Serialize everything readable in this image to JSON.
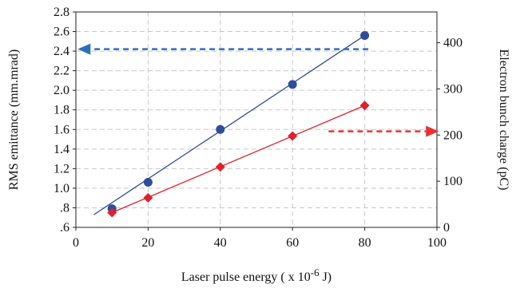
{
  "chart_data": {
    "type": "scatter",
    "xlabel": "Laser pulse energy ( x 10",
    "xlabel_exp": "-6",
    "xlabel_unit": " J)",
    "ylabel_left": "RMS emittance (mm.mrad)",
    "ylabel_right": "Electron bunch charge (pC)",
    "xlim": [
      0,
      100
    ],
    "ylim_left": [
      0.6,
      2.8
    ],
    "ylim_right": [
      0,
      466.67
    ],
    "x_ticks": [
      {
        "v": 0,
        "t": "0"
      },
      {
        "v": 20,
        "t": "20"
      },
      {
        "v": 40,
        "t": "40"
      },
      {
        "v": 60,
        "t": "60"
      },
      {
        "v": 80,
        "t": "80"
      },
      {
        "v": 100,
        "t": "100"
      }
    ],
    "y_left_ticks": [
      {
        "v": 0.6,
        "t": ".6"
      },
      {
        "v": 0.8,
        "t": ".8"
      },
      {
        "v": 1.0,
        "t": "1.0"
      },
      {
        "v": 1.2,
        "t": "1.2"
      },
      {
        "v": 1.4,
        "t": "1.4"
      },
      {
        "v": 1.6,
        "t": "1.6"
      },
      {
        "v": 1.8,
        "t": "1.8"
      },
      {
        "v": 2.0,
        "t": "2.0"
      },
      {
        "v": 2.2,
        "t": "2.2"
      },
      {
        "v": 2.4,
        "t": "2.4"
      },
      {
        "v": 2.6,
        "t": "2.6"
      },
      {
        "v": 2.8,
        "t": "2.8"
      }
    ],
    "y_right_ticks": [
      {
        "v": 0,
        "t": "0"
      },
      {
        "v": 100,
        "t": "100"
      },
      {
        "v": 200,
        "t": "200"
      },
      {
        "v": 300,
        "t": "300"
      },
      {
        "v": 400,
        "t": "400"
      }
    ],
    "grid": true,
    "series": [
      {
        "axis": "left",
        "color": "#2e4d9a",
        "marker": "circle",
        "points": [
          {
            "x": 10,
            "y": 0.79
          },
          {
            "x": 20,
            "y": 1.06
          },
          {
            "x": 40,
            "y": 1.6
          },
          {
            "x": 60,
            "y": 2.06
          },
          {
            "x": 80,
            "y": 2.56
          }
        ],
        "fit": [
          {
            "x": 5,
            "y": 0.73
          },
          {
            "x": 80,
            "y": 2.56
          }
        ]
      },
      {
        "axis": "right",
        "color": "#e0202a",
        "marker": "diamond",
        "points": [
          {
            "x": 10,
            "y": 32
          },
          {
            "x": 20,
            "y": 64
          },
          {
            "x": 40,
            "y": 131
          },
          {
            "x": 60,
            "y": 198
          },
          {
            "x": 80,
            "y": 264
          }
        ],
        "fit": [
          {
            "x": 10,
            "y": 32
          },
          {
            "x": 80,
            "y": 264
          }
        ]
      }
    ],
    "arrows": [
      {
        "axis": "left",
        "color": "#2a6fc0",
        "from_x": 81,
        "to_x": 0.5,
        "y": 2.42,
        "direction": "left"
      },
      {
        "axis": "right",
        "color": "#ea3030",
        "from_x": 70,
        "to_x": 100.5,
        "y": 208,
        "direction": "right"
      }
    ]
  }
}
